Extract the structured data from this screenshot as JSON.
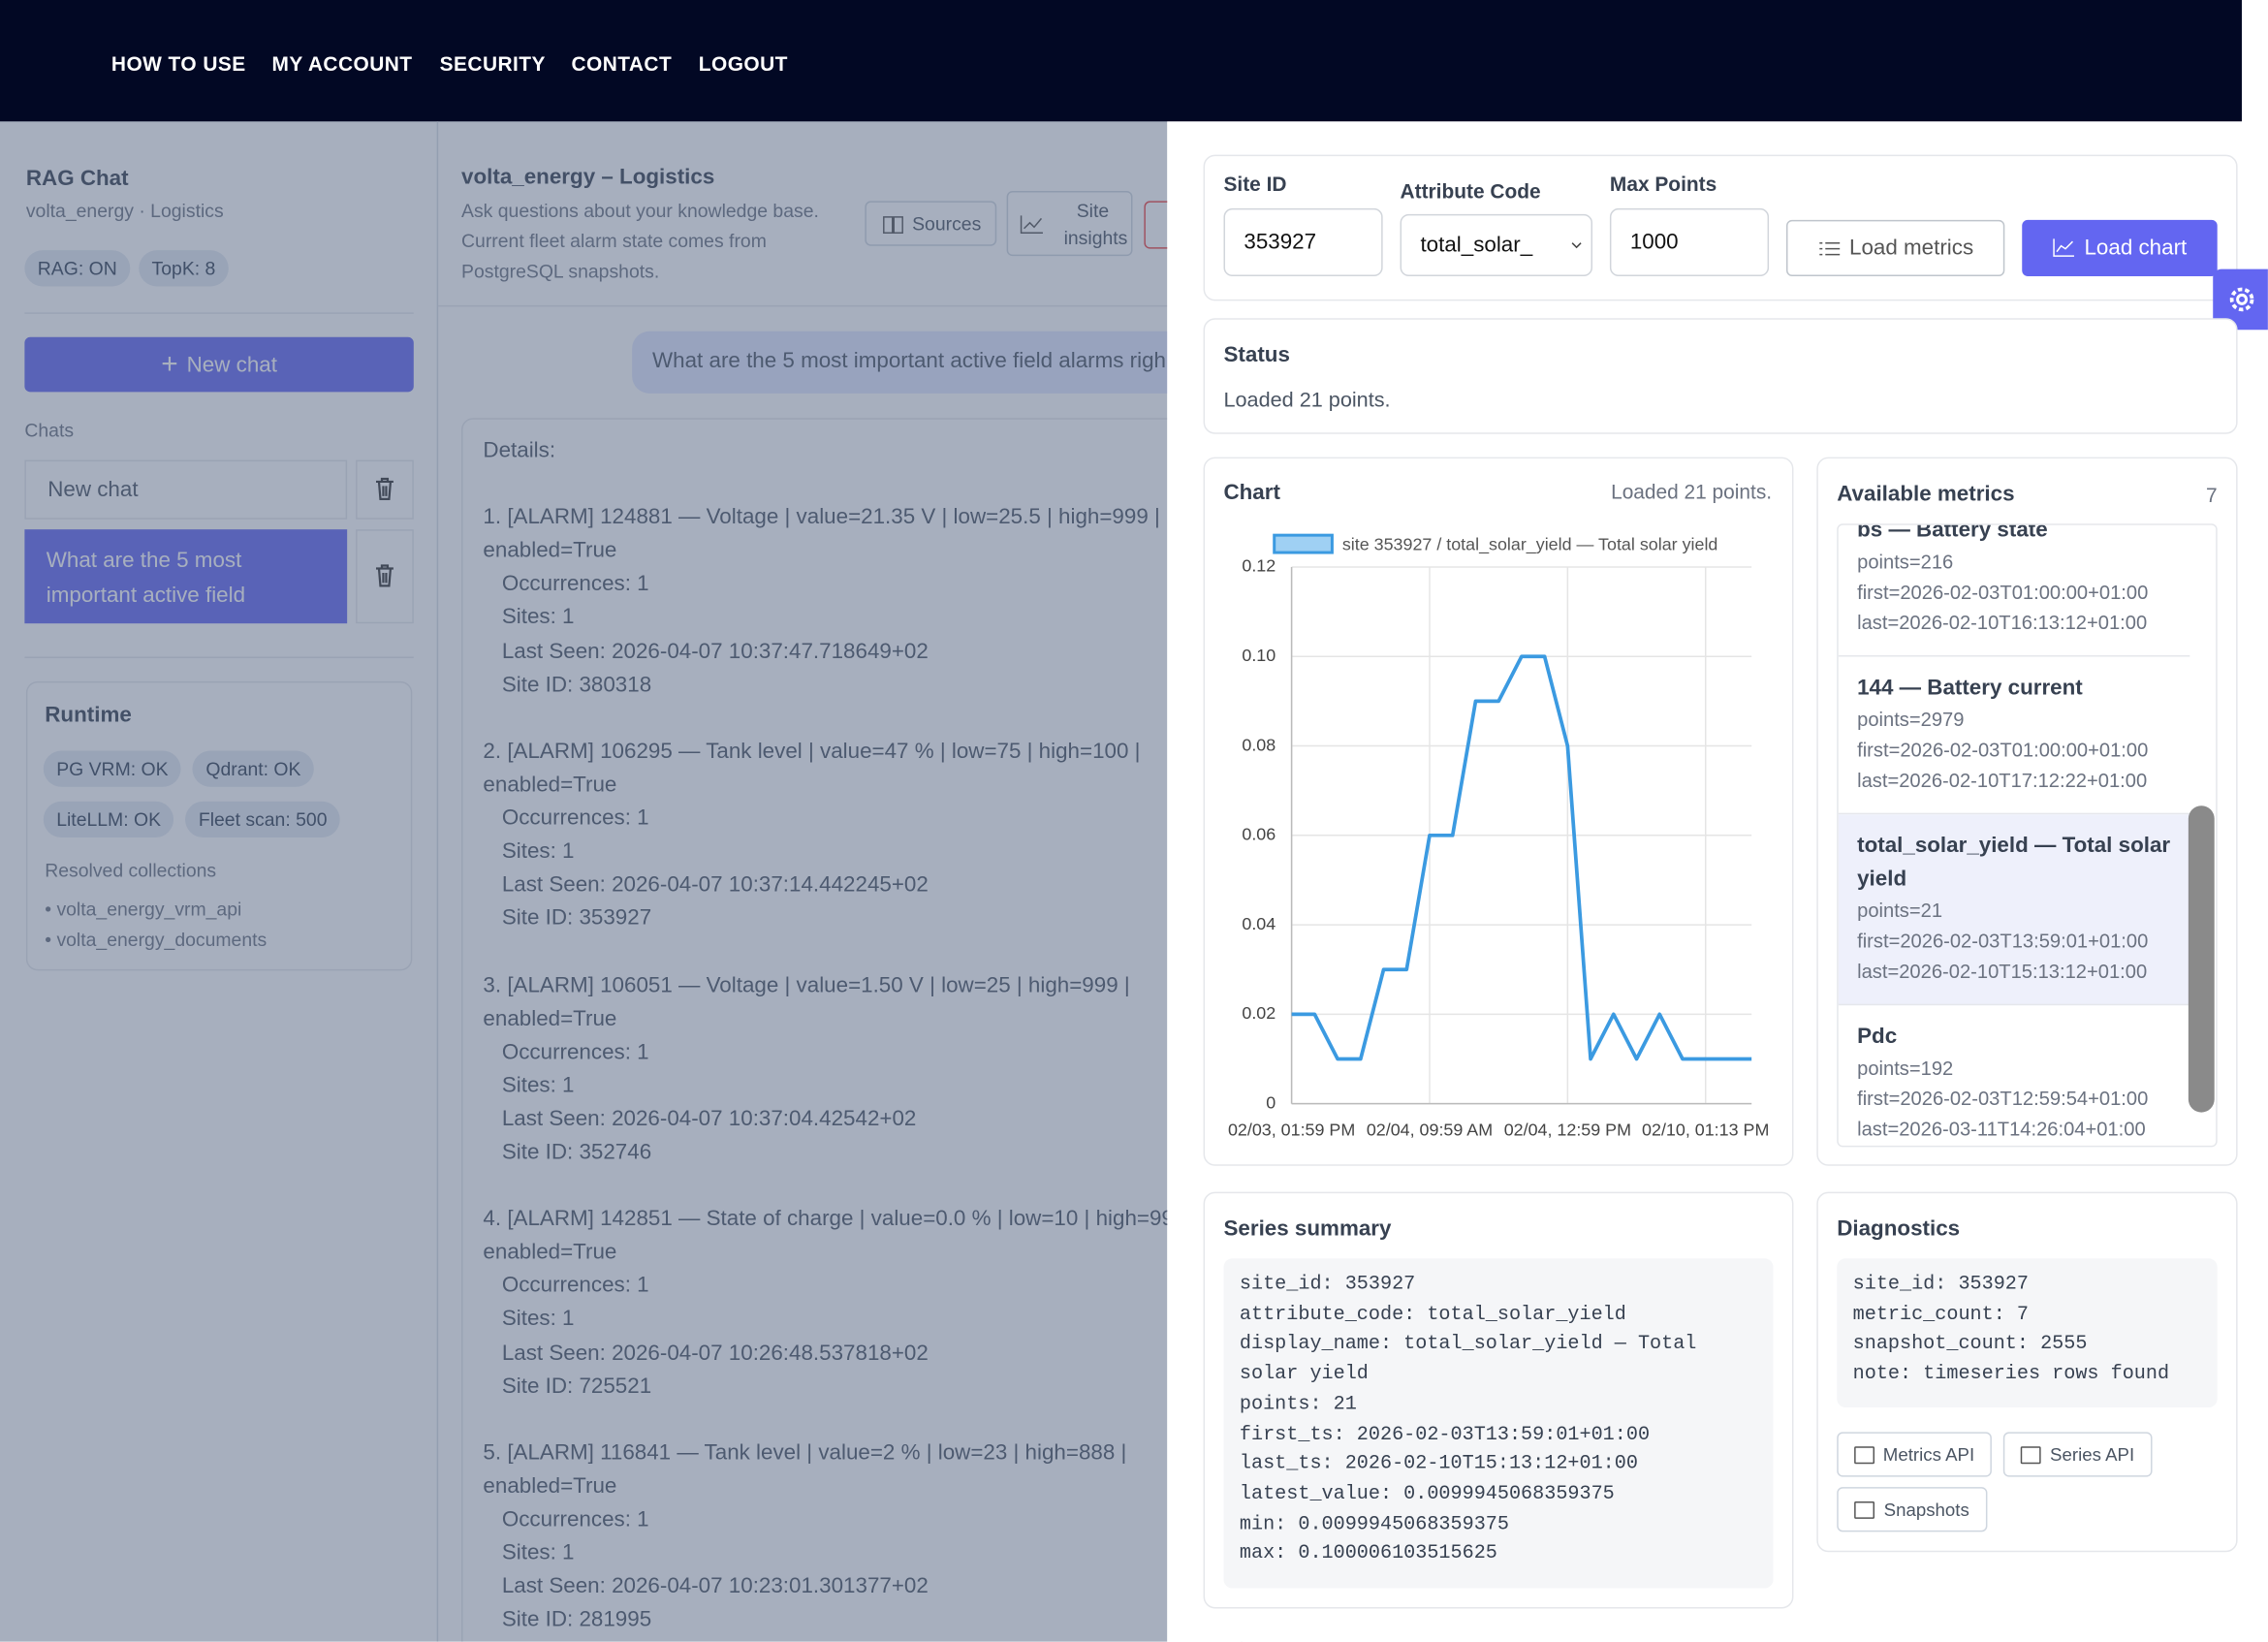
{
  "nav": {
    "links": [
      "HOW TO USE",
      "MY ACCOUNT",
      "SECURITY",
      "CONTACT",
      "LOGOUT"
    ]
  },
  "sidebar": {
    "title": "RAG Chat",
    "subtitle": "volta_energy · Logistics",
    "badges": [
      "RAG: ON",
      "TopK: 8"
    ],
    "new_chat": "New chat",
    "chats_label": "Chats",
    "chats": [
      "New chat",
      "What are the 5 most important active field"
    ],
    "runtime": {
      "title": "Runtime",
      "badges": [
        "PG VRM: OK",
        "Qdrant: OK",
        "LiteLLM: OK",
        "Fleet scan: 500"
      ],
      "collections_label": "Resolved collections",
      "collections": [
        "• volta_energy_vrm_api",
        "• volta_energy_documents"
      ]
    }
  },
  "chat": {
    "title": "volta_energy – Logistics",
    "description": [
      "Ask questions about your knowledge base.",
      "Current fleet alarm state comes from",
      "PostgreSQL snapshots."
    ],
    "buttons": [
      "Sources",
      "Site insights"
    ],
    "user_message": "What are the 5 most important active field alarms righ",
    "answer": {
      "intro": "Details:",
      "alarms": [
        {
          "heading": "1. [ALARM] 124881 — Voltage | value=21.35 V | low=25.5 | high=999 |",
          "lines": [
            "enabled=True",
            "Occurrences: 1",
            "Sites: 1",
            "Last Seen: 2026-04-07 10:37:47.718649+02",
            "Site ID: 380318"
          ]
        },
        {
          "heading": "2. [ALARM] 106295 — Tank level | value=47 % | low=75 | high=100 |",
          "lines": [
            "enabled=True",
            "Occurrences: 1",
            "Sites: 1",
            "Last Seen: 2026-04-07 10:37:14.442245+02",
            "Site ID: 353927"
          ]
        },
        {
          "heading": "3. [ALARM] 106051 — Voltage | value=1.50 V | low=25 | high=999 |",
          "lines": [
            "enabled=True",
            "Occurrences: 1",
            "Sites: 1",
            "Last Seen: 2026-04-07 10:37:04.42542+02",
            "Site ID: 352746"
          ]
        },
        {
          "heading": "4. [ALARM] 142851 — State of charge | value=0.0 % | low=10 | high=99",
          "lines": [
            "enabled=True",
            "Occurrences: 1",
            "Sites: 1",
            "Last Seen: 2026-04-07 10:26:48.537818+02",
            "Site ID: 725521"
          ]
        },
        {
          "heading": "5. [ALARM] 116841 — Tank level | value=2 % | low=23 | high=888 |",
          "lines": [
            "enabled=True",
            "Occurrences: 1",
            "Sites: 1",
            "Last Seen: 2026-04-07 10:23:01.301377+02",
            "Site ID: 281995"
          ]
        }
      ]
    }
  },
  "drawer": {
    "form": {
      "site_id_label": "Site ID",
      "site_id": "353927",
      "attribute_label": "Attribute Code",
      "attribute": "total_solar_",
      "max_points_label": "Max Points",
      "max_points": "1000",
      "load_metrics": "Load metrics",
      "load_chart": "Load chart"
    },
    "status": {
      "title": "Status",
      "text": "Loaded 21 points."
    },
    "chart_card": {
      "title": "Chart",
      "status": "Loaded 21 points."
    },
    "metrics": {
      "title": "Available metrics",
      "count": "7",
      "items": [
        {
          "title": "bs — Battery state",
          "lines": [
            "points=216",
            "first=2026-02-03T01:00:00+01:00",
            "last=2026-02-10T16:13:12+01:00"
          ]
        },
        {
          "title": "144 — Battery current",
          "lines": [
            "points=2979",
            "first=2026-02-03T01:00:00+01:00",
            "last=2026-02-10T17:12:22+01:00"
          ]
        },
        {
          "title": "total_solar_yield — Total solar yield",
          "lines": [
            "points=21",
            "first=2026-02-03T13:59:01+01:00",
            "last=2026-02-10T15:13:12+01:00"
          ]
        },
        {
          "title": "Pdc",
          "lines": [
            "points=192",
            "first=2026-02-03T12:59:54+01:00",
            "last=2026-03-11T14:26:04+01:00"
          ]
        }
      ]
    },
    "summary": {
      "title": "Series summary",
      "lines": [
        "site_id: 353927",
        "attribute_code: total_solar_yield",
        "display_name: total_solar_yield — Total",
        "solar yield",
        "points: 21",
        "first_ts: 2026-02-03T13:59:01+01:00",
        "last_ts: 2026-02-10T15:13:12+01:00",
        "latest_value: 0.0099945068359375",
        "min: 0.0099945068359375",
        "max: 0.100006103515625"
      ]
    },
    "diagnostics": {
      "title": "Diagnostics",
      "lines": [
        "site_id: 353927",
        "metric_count: 7",
        "snapshot_count: 2555",
        "note: timeseries rows found"
      ],
      "buttons": [
        "Metrics API",
        "Series API",
        "Snapshots"
      ]
    }
  },
  "chart_data": {
    "type": "line",
    "categories": [
      "02/03, 01:59 PM",
      null,
      null,
      null,
      null,
      null,
      "02/04, 09:59 AM",
      null,
      null,
      null,
      null,
      null,
      "02/04, 12:59 PM",
      null,
      null,
      null,
      null,
      null,
      "02/10, 01:13 PM",
      null,
      null
    ],
    "series": [
      {
        "name": "site 353927 / total_solar_yield — Total solar yield",
        "color": "#3b9ae1",
        "values": [
          0.02,
          0.02,
          0.01,
          0.01,
          0.03,
          0.03,
          0.06,
          0.06,
          0.09,
          0.09,
          0.1,
          0.1,
          0.08,
          0.01,
          0.02,
          0.01,
          0.02,
          0.01,
          0.01,
          0.01,
          0.01
        ]
      }
    ],
    "ylim": [
      0,
      0.12
    ],
    "yticks": [
      0,
      0.02,
      0.04,
      0.06,
      0.08,
      {
        "value": 0.1,
        "label": "0.10"
      },
      0.12
    ],
    "grid": true,
    "legend": "top"
  }
}
